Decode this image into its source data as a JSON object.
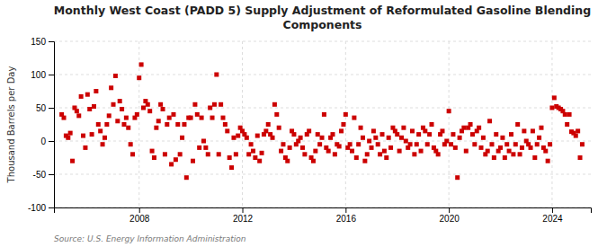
{
  "chart_data": {
    "type": "scatter",
    "title": "Monthly West Coast (PADD 5) Supply Adjustment of Reformulated Gasoline Blending\nComponents",
    "y_label": "Thousand Barrels per Day",
    "source": "Source: U.S. Energy Information Administration",
    "color": "#cc0000",
    "marker": "square",
    "grid": true,
    "xlim": [
      2004.7,
      2025.5
    ],
    "xticks": [
      2008,
      2012,
      2016,
      2020,
      2024
    ],
    "ylim": [
      -100,
      150
    ],
    "yticks": [
      -100,
      -50,
      0,
      50,
      100,
      150
    ],
    "x": [
      2005.0,
      2005.083,
      2005.167,
      2005.25,
      2005.333,
      2005.417,
      2005.5,
      2005.583,
      2005.667,
      2005.75,
      2005.833,
      2005.917,
      2006.0,
      2006.083,
      2006.167,
      2006.25,
      2006.333,
      2006.417,
      2006.5,
      2006.583,
      2006.667,
      2006.75,
      2006.833,
      2006.917,
      2007.0,
      2007.083,
      2007.167,
      2007.25,
      2007.333,
      2007.417,
      2007.5,
      2007.583,
      2007.667,
      2007.75,
      2007.833,
      2007.917,
      2008.0,
      2008.083,
      2008.167,
      2008.25,
      2008.333,
      2008.417,
      2008.5,
      2008.583,
      2008.667,
      2008.75,
      2008.833,
      2008.917,
      2009.0,
      2009.083,
      2009.167,
      2009.25,
      2009.333,
      2009.417,
      2009.5,
      2009.583,
      2009.667,
      2009.75,
      2009.833,
      2009.917,
      2010.0,
      2010.083,
      2010.167,
      2010.25,
      2010.333,
      2010.417,
      2010.5,
      2010.583,
      2010.667,
      2010.75,
      2010.833,
      2010.917,
      2011.0,
      2011.083,
      2011.167,
      2011.25,
      2011.333,
      2011.417,
      2011.5,
      2011.583,
      2011.667,
      2011.75,
      2011.833,
      2011.917,
      2012.0,
      2012.083,
      2012.167,
      2012.25,
      2012.333,
      2012.417,
      2012.5,
      2012.583,
      2012.667,
      2012.75,
      2012.833,
      2012.917,
      2013.0,
      2013.083,
      2013.167,
      2013.25,
      2013.333,
      2013.417,
      2013.5,
      2013.583,
      2013.667,
      2013.75,
      2013.833,
      2013.917,
      2014.0,
      2014.083,
      2014.167,
      2014.25,
      2014.333,
      2014.417,
      2014.5,
      2014.583,
      2014.667,
      2014.75,
      2014.833,
      2014.917,
      2015.0,
      2015.083,
      2015.167,
      2015.25,
      2015.333,
      2015.417,
      2015.5,
      2015.583,
      2015.667,
      2015.75,
      2015.833,
      2015.917,
      2016.0,
      2016.083,
      2016.167,
      2016.25,
      2016.333,
      2016.417,
      2016.5,
      2016.583,
      2016.667,
      2016.75,
      2016.833,
      2016.917,
      2017.0,
      2017.083,
      2017.167,
      2017.25,
      2017.333,
      2017.417,
      2017.5,
      2017.583,
      2017.667,
      2017.75,
      2017.833,
      2017.917,
      2018.0,
      2018.083,
      2018.167,
      2018.25,
      2018.333,
      2018.417,
      2018.5,
      2018.583,
      2018.667,
      2018.75,
      2018.833,
      2018.917,
      2019.0,
      2019.083,
      2019.167,
      2019.25,
      2019.333,
      2019.417,
      2019.5,
      2019.583,
      2019.667,
      2019.75,
      2019.833,
      2019.917,
      2020.0,
      2020.083,
      2020.167,
      2020.25,
      2020.333,
      2020.417,
      2020.5,
      2020.583,
      2020.667,
      2020.75,
      2020.833,
      2020.917,
      2021.0,
      2021.083,
      2021.167,
      2021.25,
      2021.333,
      2021.417,
      2021.5,
      2021.583,
      2021.667,
      2021.75,
      2021.833,
      2021.917,
      2022.0,
      2022.083,
      2022.167,
      2022.25,
      2022.333,
      2022.417,
      2022.5,
      2022.583,
      2022.667,
      2022.75,
      2022.833,
      2022.917,
      2023.0,
      2023.083,
      2023.167,
      2023.25,
      2023.333,
      2023.417,
      2023.5,
      2023.583,
      2023.667,
      2023.75,
      2023.833,
      2023.917,
      2024.0,
      2024.083,
      2024.167,
      2024.25,
      2024.333,
      2024.417,
      2024.5,
      2024.583,
      2024.667,
      2024.75,
      2024.833,
      2024.917,
      2025.0,
      2025.083,
      2025.167
    ],
    "values": [
      40,
      35,
      8,
      5,
      12,
      -30,
      50,
      45,
      38,
      67,
      8,
      -10,
      70,
      48,
      10,
      52,
      75,
      25,
      15,
      -5,
      5,
      25,
      38,
      80,
      55,
      98,
      30,
      60,
      48,
      25,
      35,
      20,
      -5,
      -20,
      35,
      40,
      95,
      115,
      50,
      60,
      55,
      45,
      -15,
      -25,
      20,
      30,
      55,
      48,
      -20,
      25,
      35,
      -35,
      40,
      -28,
      25,
      -20,
      5,
      25,
      -55,
      35,
      35,
      -30,
      55,
      40,
      -10,
      35,
      0,
      -10,
      -20,
      50,
      35,
      55,
      100,
      -20,
      55,
      35,
      25,
      15,
      -25,
      -40,
      5,
      -20,
      8,
      20,
      15,
      10,
      5,
      -20,
      -5,
      -15,
      -25,
      8,
      -30,
      -18,
      10,
      15,
      25,
      10,
      5,
      55,
      40,
      20,
      -15,
      -5,
      -25,
      -30,
      -10,
      15,
      10,
      -5,
      0,
      5,
      -10,
      -20,
      10,
      15,
      -25,
      -30,
      -15,
      10,
      -5,
      5,
      40,
      -10,
      -15,
      5,
      10,
      -20,
      -5,
      -8,
      15,
      25,
      40,
      -10,
      -5,
      -15,
      35,
      -25,
      -5,
      20,
      5,
      -30,
      -20,
      0,
      -10,
      15,
      5,
      -5,
      -20,
      10,
      -15,
      -25,
      5,
      -10,
      20,
      15,
      10,
      -15,
      5,
      20,
      0,
      -10,
      -5,
      15,
      -20,
      -5,
      10,
      -15,
      20,
      15,
      -5,
      10,
      25,
      -10,
      -15,
      -20,
      10,
      15,
      -5,
      0,
      45,
      -5,
      10,
      -10,
      -55,
      5,
      15,
      20,
      -15,
      20,
      25,
      10,
      -5,
      15,
      20,
      -10,
      5,
      -20,
      -15,
      30,
      -5,
      -25,
      10,
      -15,
      -10,
      5,
      -25,
      -5,
      -15,
      10,
      -20,
      -5,
      25,
      -20,
      -10,
      15,
      0,
      -5,
      -10,
      15,
      -25,
      -5,
      5,
      20,
      -10,
      -15,
      -30,
      -5,
      50,
      65,
      52,
      50,
      48,
      45,
      40,
      25,
      40,
      14,
      12,
      8,
      15,
      -25,
      -5
    ]
  }
}
